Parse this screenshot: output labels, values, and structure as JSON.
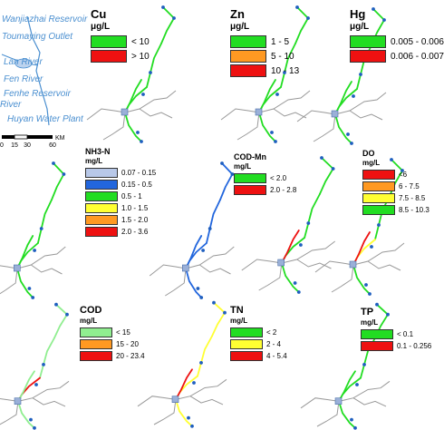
{
  "places": [
    {
      "id": "wanjiazhai",
      "text": "Wanjiazhai Reservoir"
    },
    {
      "id": "toumaying",
      "text": "Toumaying Outlet"
    },
    {
      "id": "lan",
      "text": "Lan River"
    },
    {
      "id": "fen",
      "text": "Fen River"
    },
    {
      "id": "fenhe",
      "text": "Fenhe Reservoir"
    },
    {
      "id": "river",
      "text": "River"
    },
    {
      "id": "huyan",
      "text": "Huyan Water Plant"
    }
  ],
  "scale_bar": {
    "ticks": [
      "0",
      "15",
      "30",
      "60"
    ],
    "unit": "KM"
  },
  "colors": {
    "light_green": "#90ee90",
    "green": "#22dd22",
    "yellow": "#ffff33",
    "orange": "#ff9922",
    "red": "#ee1111",
    "light_blue": "#b8c8e8",
    "blue": "#2266dd",
    "tributary": "#999999",
    "station": "#1f5fbf"
  },
  "legends": [
    {
      "id": "cu",
      "title": "Cu",
      "unit": "μg/L",
      "items": [
        {
          "label": "< 10",
          "color": "#22dd22"
        },
        {
          "label": "> 10",
          "color": "#ee1111"
        }
      ]
    },
    {
      "id": "zn",
      "title": "Zn",
      "unit": "μg/L",
      "items": [
        {
          "label": "1 - 5",
          "color": "#22dd22"
        },
        {
          "label": "5 - 10",
          "color": "#ff9922"
        },
        {
          "label": "10 - 13",
          "color": "#ee1111"
        }
      ]
    },
    {
      "id": "hg",
      "title": "Hg",
      "unit": "μg/L",
      "items": [
        {
          "label": "0.005 - 0.006",
          "color": "#22dd22"
        },
        {
          "label": "0.006 - 0.007",
          "color": "#ee1111"
        }
      ]
    },
    {
      "id": "nh3n",
      "title": "NH3-N",
      "unit": "mg/L",
      "items": [
        {
          "label": "0.07 - 0.15",
          "color": "#b8c8e8"
        },
        {
          "label": "0.15 - 0.5",
          "color": "#2266dd"
        },
        {
          "label": "0.5 - 1",
          "color": "#22dd22"
        },
        {
          "label": "1.0 - 1.5",
          "color": "#ffff33"
        },
        {
          "label": "1.5 - 2.0",
          "color": "#ff9922"
        },
        {
          "label": "2.0 - 3.6",
          "color": "#ee1111"
        }
      ]
    },
    {
      "id": "codmn",
      "title": "COD-Mn",
      "unit": "mg/L",
      "items": [
        {
          "label": "< 2.0",
          "color": "#22dd22"
        },
        {
          "label": "2.0 - 2.8",
          "color": "#ee1111"
        }
      ]
    },
    {
      "id": "do",
      "title": "DO",
      "unit": "mg/L",
      "items": [
        {
          "label": "<6",
          "color": "#ee1111"
        },
        {
          "label": "6 - 7.5",
          "color": "#ff9922"
        },
        {
          "label": "7.5 - 8.5",
          "color": "#ffff33"
        },
        {
          "label": "8.5 - 10.3",
          "color": "#22dd22"
        }
      ]
    },
    {
      "id": "cod",
      "title": "COD",
      "unit": "mg/L",
      "items": [
        {
          "label": "< 15",
          "color": "#90ee90"
        },
        {
          "label": "15 - 20",
          "color": "#ff9922"
        },
        {
          "label": "20 - 23.4",
          "color": "#ee1111"
        }
      ]
    },
    {
      "id": "tn",
      "title": "TN",
      "unit": "mg/L",
      "items": [
        {
          "label": "< 2",
          "color": "#22dd22"
        },
        {
          "label": "2 - 4",
          "color": "#ffff33"
        },
        {
          "label": "4 - 5.4",
          "color": "#ee1111"
        }
      ]
    },
    {
      "id": "tp",
      "title": "TP",
      "unit": "mg/L",
      "items": [
        {
          "label": "< 0.1",
          "color": "#22dd22"
        },
        {
          "label": "0.1 - 0.256",
          "color": "#ee1111"
        }
      ]
    }
  ],
  "maps": [
    {
      "id": "cu",
      "segments": [
        "#22dd22",
        "#22dd22",
        "#22dd22",
        "#22dd22",
        "#22dd22"
      ]
    },
    {
      "id": "zn",
      "segments": [
        "#22dd22",
        "#22dd22",
        "#22dd22",
        "#22dd22",
        "#22dd22"
      ]
    },
    {
      "id": "hg",
      "segments": [
        "#22dd22",
        "#22dd22",
        "#22dd22",
        "#22dd22",
        "#22dd22"
      ]
    },
    {
      "id": "nh3n",
      "segments": [
        "#22dd22",
        "#22dd22",
        "#22dd22",
        "#22dd22",
        "#22dd22"
      ]
    },
    {
      "id": "nh3n-b",
      "segments": [
        "#2266dd",
        "#2266dd",
        "#2266dd",
        "#2266dd",
        "#2266dd"
      ]
    },
    {
      "id": "codmn",
      "segments": [
        "#22dd22",
        "#22dd22",
        "#22dd22",
        "#ee1111",
        "#22dd22"
      ]
    },
    {
      "id": "do",
      "segments": [
        "#22dd22",
        "#22dd22",
        "#ffff33",
        "#ee1111",
        "#22dd22"
      ]
    },
    {
      "id": "cod",
      "segments": [
        "#90ee90",
        "#90ee90",
        "#ee1111",
        "#90ee90",
        "#90ee90"
      ]
    },
    {
      "id": "tn",
      "segments": [
        "#ffff33",
        "#ffff33",
        "#ffff33",
        "#ee1111",
        "#ffff33"
      ]
    },
    {
      "id": "tp",
      "segments": [
        "#22dd22",
        "#22dd22",
        "#22dd22",
        "#22dd22",
        "#22dd22"
      ]
    }
  ]
}
